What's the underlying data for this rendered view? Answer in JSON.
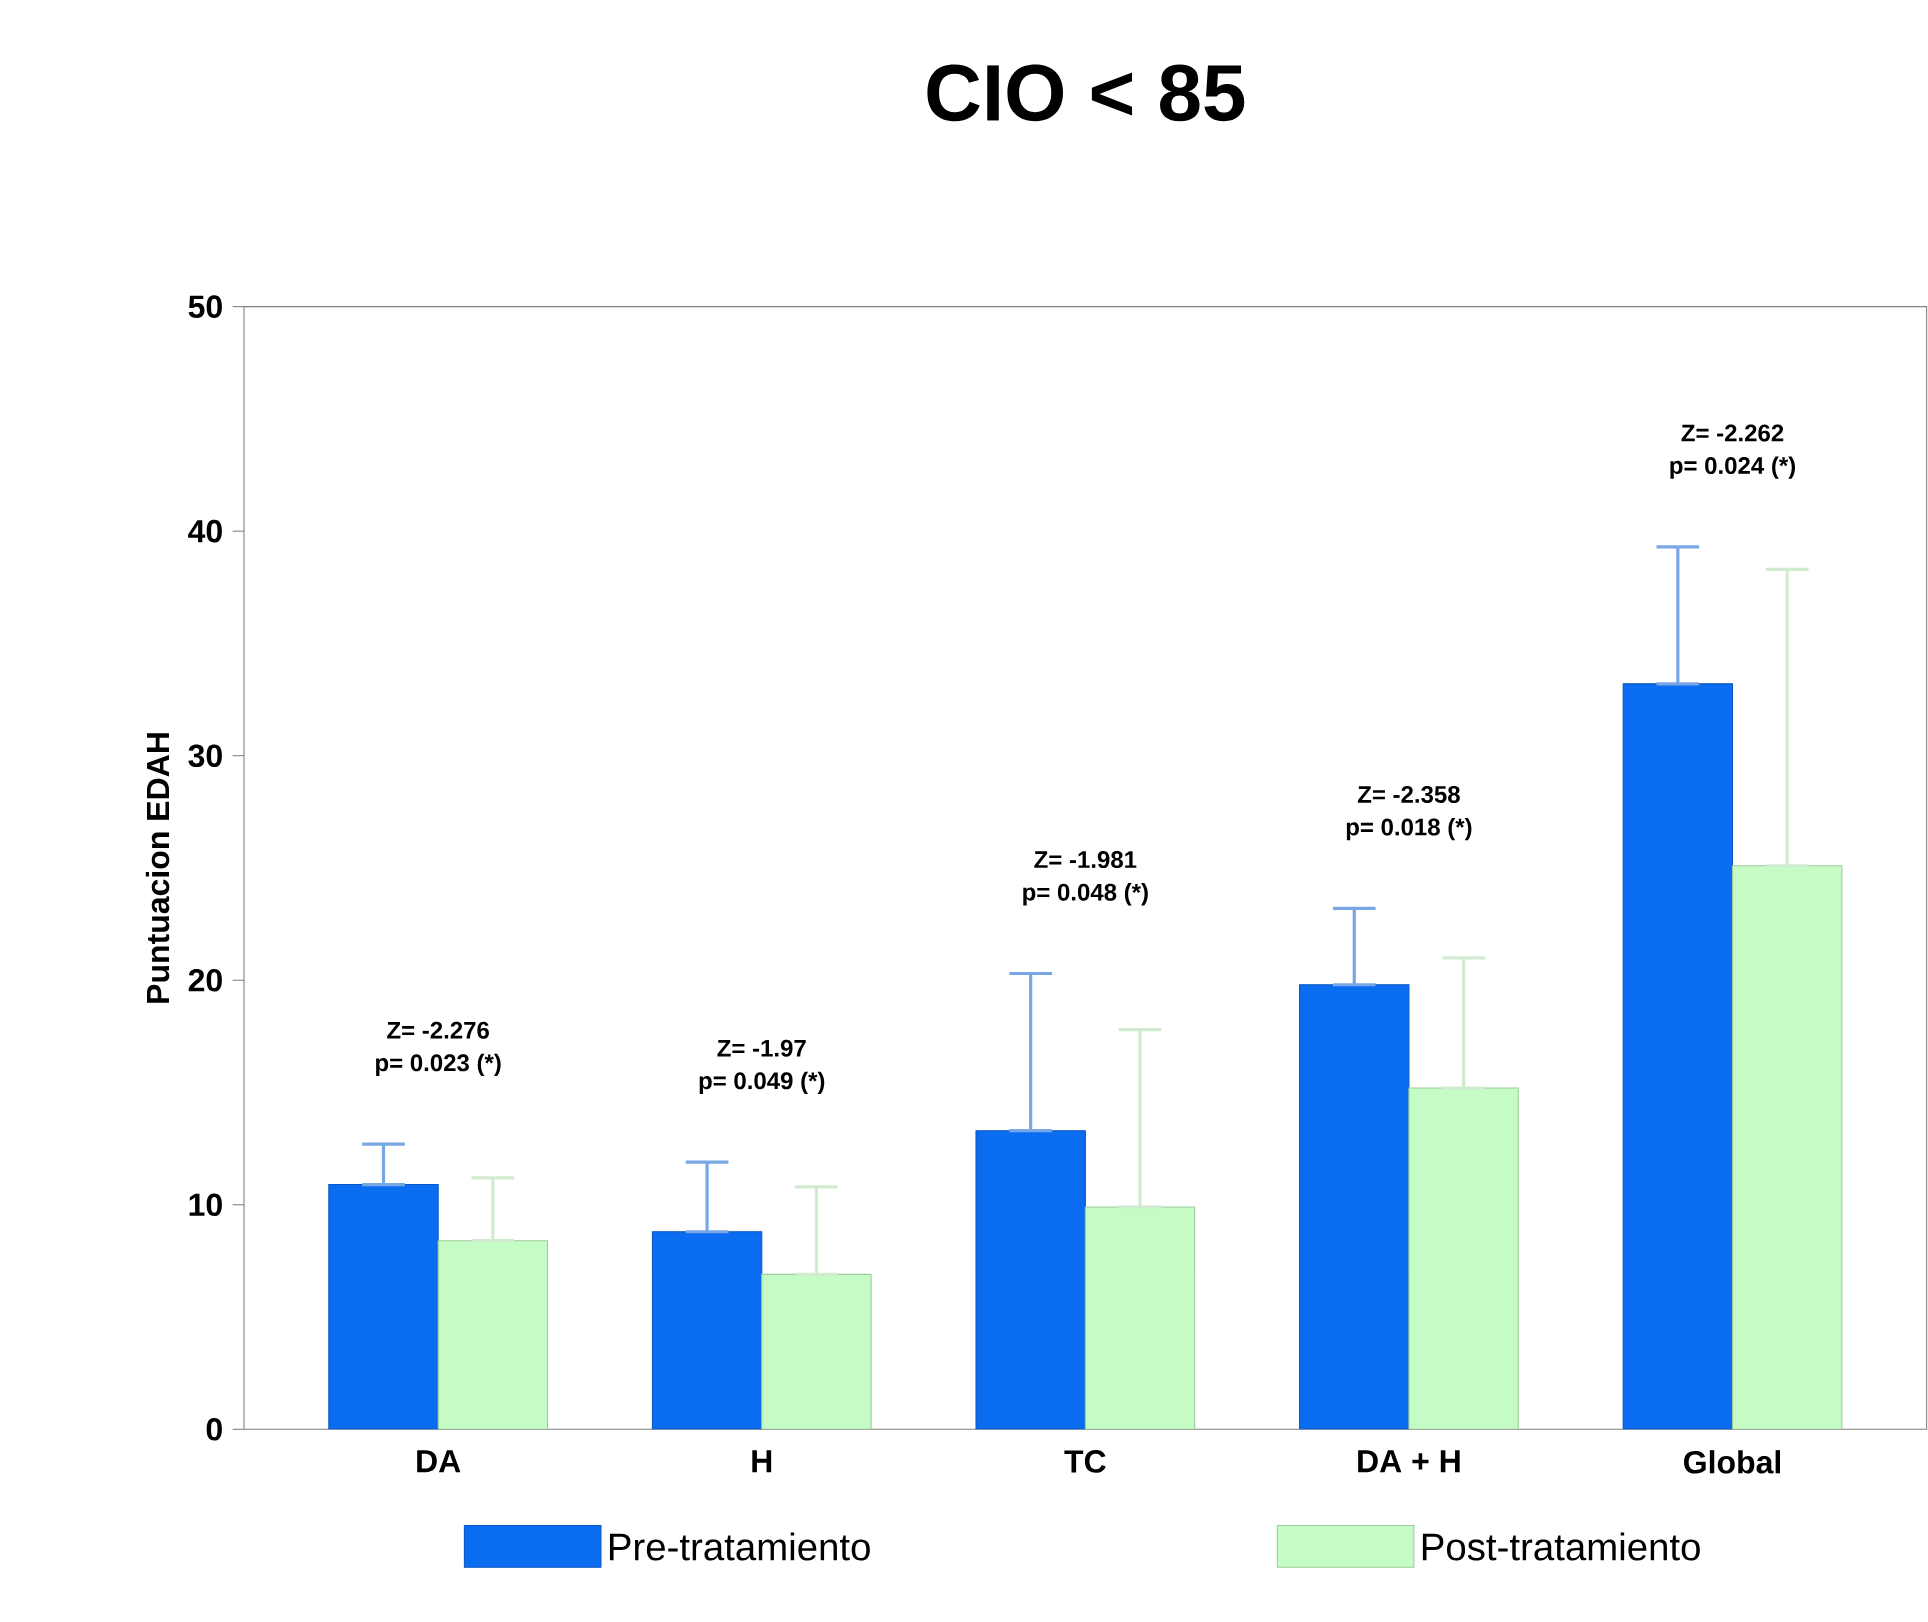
{
  "chart_data": {
    "type": "bar",
    "title": "CIO < 85",
    "ylabel": "Puntuacion EDAH",
    "categories": [
      "DA",
      "H",
      "TC",
      "DA + H",
      "Global"
    ],
    "series": [
      {
        "name": "Pre-tratamiento",
        "color": "#0a6cf0",
        "values": [
          10.9,
          8.8,
          13.3,
          19.8,
          33.2
        ],
        "errors": [
          [
            10.9,
            12.7
          ],
          [
            8.8,
            11.9
          ],
          [
            13.3,
            20.3
          ],
          [
            19.8,
            23.2
          ],
          [
            33.2,
            39.3
          ]
        ]
      },
      {
        "name": "Post-tratamiento",
        "color": "#c5fcc5",
        "values": [
          8.4,
          6.9,
          9.9,
          15.2,
          25.1
        ],
        "errors": [
          [
            8.4,
            11.2
          ],
          [
            6.9,
            10.8
          ],
          [
            9.9,
            17.8
          ],
          [
            15.2,
            21.0
          ],
          [
            25.1,
            38.3
          ]
        ]
      }
    ],
    "ylim": [
      0,
      50
    ],
    "yticks": [
      0,
      10,
      20,
      30,
      40,
      50
    ],
    "grid": false,
    "legend": "bottom",
    "annotations": [
      "Z= -2.276",
      "p= 0.023 (*)",
      "Z= -1.97",
      "p= 0.049 (*)",
      "Z= -1.981",
      "p= 0.048 (*)",
      "Z= -2.358",
      "p= 0.018 (*)",
      "Z= -2.262",
      "p= 0.024 (*)"
    ]
  }
}
